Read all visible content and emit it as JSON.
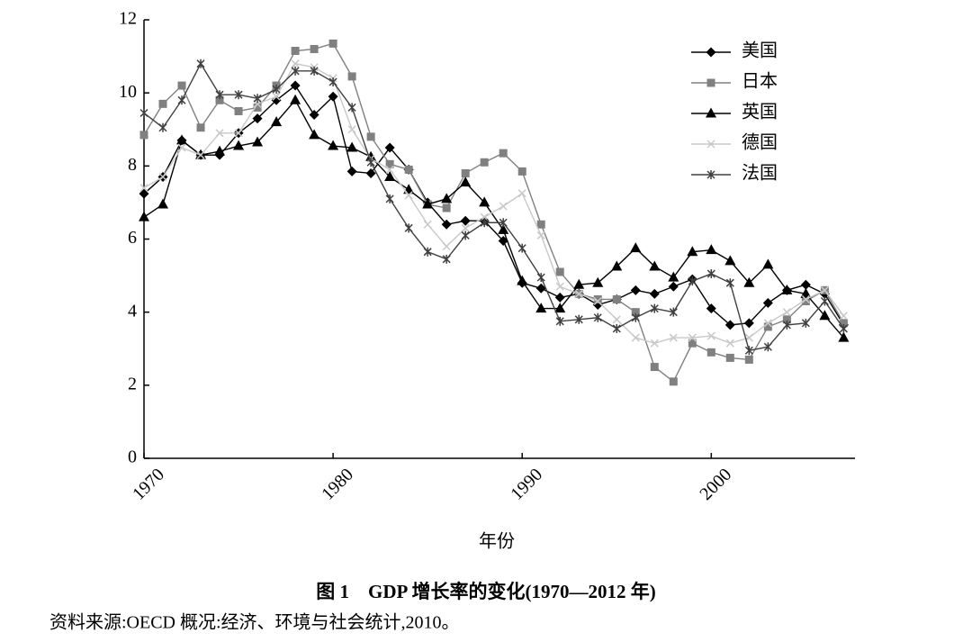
{
  "chart_data": {
    "type": "line",
    "title": "图 1　GDP 增长率的变化(1970—2012 年)",
    "source": "资料来源:OECD 概况:经济、环境与社会统计,2010。",
    "x_label": "年份",
    "x": [
      1970,
      1971,
      1972,
      1973,
      1974,
      1975,
      1976,
      1977,
      1978,
      1979,
      1980,
      1981,
      1982,
      1983,
      1984,
      1985,
      1986,
      1987,
      1988,
      1989,
      1990,
      1991,
      1992,
      1993,
      1994,
      1995,
      1996,
      1997,
      1998,
      1999,
      2000,
      2001,
      2002,
      2003,
      2004,
      2005,
      2006,
      2007
    ],
    "xlim": [
      1970,
      2007.6
    ],
    "xticks": [
      1970,
      1980,
      1990,
      2000
    ],
    "ylim": [
      0,
      12
    ],
    "yticks": [
      0,
      2,
      4,
      6,
      8,
      10,
      12
    ],
    "grid": false,
    "legend": "upper right",
    "series": [
      {
        "name": "美国",
        "color": "#000000",
        "marker": "diamond",
        "values": [
          7.24,
          7.7,
          8.7,
          8.3,
          8.3,
          8.9,
          9.3,
          9.8,
          10.2,
          9.4,
          9.9,
          7.85,
          7.8,
          8.5,
          7.9,
          7.0,
          6.4,
          6.5,
          6.5,
          5.95,
          4.8,
          4.65,
          4.4,
          4.5,
          4.2,
          4.35,
          4.6,
          4.5,
          4.7,
          4.9,
          4.1,
          3.65,
          3.7,
          4.25,
          4.6,
          4.75,
          4.5,
          3.65
        ]
      },
      {
        "name": "日本",
        "color": "#808080",
        "marker": "square",
        "values": [
          8.85,
          9.7,
          10.2,
          9.05,
          9.8,
          9.5,
          9.6,
          10.2,
          11.15,
          11.2,
          11.35,
          10.45,
          8.8,
          8.05,
          7.9,
          6.95,
          6.85,
          7.8,
          8.1,
          8.35,
          7.85,
          6.4,
          5.1,
          4.5,
          4.35,
          4.35,
          4.0,
          2.5,
          2.1,
          3.15,
          2.9,
          2.75,
          2.7,
          3.6,
          3.8,
          4.3,
          4.6,
          3.7
        ]
      },
      {
        "name": "英国",
        "color": "#000000",
        "marker": "triangle",
        "values": [
          6.6,
          6.95,
          8.7,
          8.3,
          8.4,
          8.55,
          8.65,
          9.2,
          9.8,
          8.85,
          8.55,
          8.5,
          8.25,
          7.7,
          7.35,
          6.95,
          7.1,
          7.55,
          7.0,
          6.25,
          4.85,
          4.1,
          4.1,
          4.75,
          4.8,
          5.25,
          5.75,
          5.25,
          4.95,
          5.65,
          5.7,
          5.4,
          4.8,
          5.3,
          4.6,
          4.5,
          3.9,
          3.3
        ]
      },
      {
        "name": "德国",
        "color": "#c8c8c8",
        "marker": "x",
        "values": [
          7.4,
          7.7,
          8.5,
          8.3,
          8.9,
          8.9,
          9.7,
          9.9,
          10.8,
          10.7,
          10.4,
          9.0,
          8.2,
          7.9,
          7.2,
          6.4,
          5.8,
          6.3,
          6.6,
          6.9,
          7.25,
          6.1,
          4.7,
          4.5,
          4.3,
          3.8,
          3.3,
          3.15,
          3.3,
          3.3,
          3.35,
          3.15,
          3.3,
          3.7,
          4.0,
          4.35,
          4.6,
          3.9
        ]
      },
      {
        "name": "法国",
        "color": "#404040",
        "marker": "star",
        "values": [
          9.45,
          9.05,
          9.8,
          10.8,
          9.95,
          9.95,
          9.85,
          10.1,
          10.6,
          10.6,
          10.3,
          9.6,
          8.1,
          7.1,
          6.3,
          5.65,
          5.45,
          6.1,
          6.45,
          6.45,
          5.75,
          4.95,
          3.75,
          3.8,
          3.85,
          3.55,
          3.85,
          4.1,
          4.0,
          4.85,
          5.05,
          4.8,
          2.95,
          3.05,
          3.65,
          3.7,
          4.3,
          3.55
        ]
      }
    ]
  }
}
